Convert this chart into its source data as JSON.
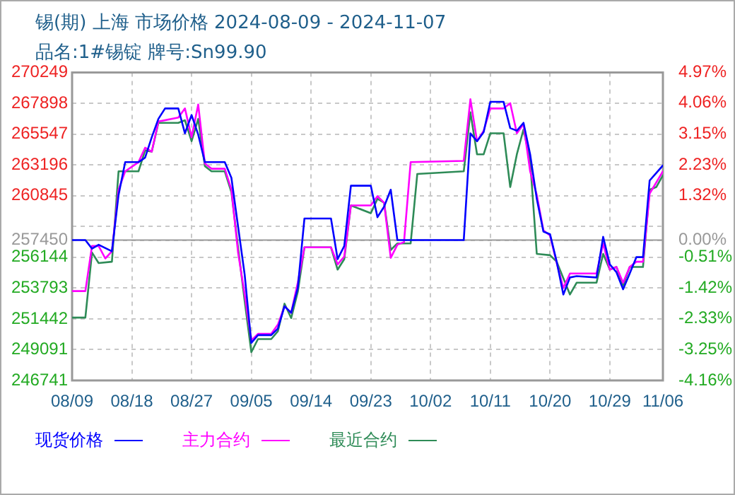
{
  "chart_data": {
    "type": "line",
    "title": "锡(期) 上海 市场价格 2024-08-09 - 2024-11-07",
    "subtitle": "品名:1#锡锭 牌号:Sn99.90",
    "series": [
      {
        "name": "现货价格",
        "color": "#0000ff",
        "x": [
          "2024-08-09",
          "2024-08-11",
          "2024-08-12",
          "2024-08-13",
          "2024-08-15",
          "2024-08-16",
          "2024-08-17",
          "2024-08-19",
          "2024-08-20",
          "2024-08-21",
          "2024-08-22",
          "2024-08-23",
          "2024-08-25",
          "2024-08-26",
          "2024-08-27",
          "2024-08-28",
          "2024-08-29",
          "2024-09-01",
          "2024-09-02",
          "2024-09-03",
          "2024-09-04",
          "2024-09-05",
          "2024-09-06",
          "2024-09-08",
          "2024-09-09",
          "2024-09-10",
          "2024-09-11",
          "2024-09-12",
          "2024-09-13",
          "2024-09-17",
          "2024-09-18",
          "2024-09-19",
          "2024-09-20",
          "2024-09-23",
          "2024-09-24",
          "2024-09-25",
          "2024-09-26",
          "2024-09-27",
          "2024-10-07",
          "2024-10-08",
          "2024-10-09",
          "2024-10-10",
          "2024-10-11",
          "2024-10-13",
          "2024-10-14",
          "2024-10-15",
          "2024-10-16",
          "2024-10-17",
          "2024-10-18",
          "2024-10-19",
          "2024-10-20",
          "2024-10-21",
          "2024-10-22",
          "2024-10-23",
          "2024-10-24",
          "2024-10-27",
          "2024-10-28",
          "2024-10-29",
          "2024-10-30",
          "2024-10-31",
          "2024-11-01",
          "2024-11-02",
          "2024-11-03",
          "2024-11-04",
          "2024-11-06"
        ],
        "values": [
          257450,
          257450,
          256800,
          257100,
          256600,
          260900,
          263400,
          263400,
          263750,
          265300,
          266700,
          267500,
          267500,
          265600,
          267000,
          265500,
          263400,
          263400,
          262200,
          258500,
          254800,
          249600,
          250200,
          250200,
          250700,
          252400,
          251900,
          253800,
          259100,
          259100,
          256000,
          257000,
          261600,
          261600,
          259200,
          260000,
          261300,
          257450,
          257450,
          265600,
          265000,
          265700,
          268000,
          268000,
          266000,
          265800,
          266400,
          264000,
          260600,
          258100,
          257900,
          255800,
          253300,
          254600,
          254700,
          254600,
          257700,
          255600,
          255000,
          253700,
          254900,
          256150,
          256150,
          262000,
          263150
        ]
      },
      {
        "name": "主力合约",
        "color": "#ff00ff",
        "x": [
          "2024-08-09",
          "2024-08-11",
          "2024-08-12",
          "2024-08-13",
          "2024-08-14",
          "2024-08-15",
          "2024-08-16",
          "2024-08-17",
          "2024-08-19",
          "2024-08-20",
          "2024-08-21",
          "2024-08-22",
          "2024-08-25",
          "2024-08-26",
          "2024-08-27",
          "2024-08-28",
          "2024-08-29",
          "2024-08-30",
          "2024-09-01",
          "2024-09-02",
          "2024-09-03",
          "2024-09-04",
          "2024-09-05",
          "2024-09-06",
          "2024-09-08",
          "2024-09-09",
          "2024-09-10",
          "2024-09-11",
          "2024-09-12",
          "2024-09-13",
          "2024-09-17",
          "2024-09-18",
          "2024-09-19",
          "2024-09-20",
          "2024-09-23",
          "2024-09-24",
          "2024-09-25",
          "2024-09-26",
          "2024-09-27",
          "2024-09-28",
          "2024-09-29",
          "2024-10-07",
          "2024-10-08",
          "2024-10-09",
          "2024-10-10",
          "2024-10-11",
          "2024-10-13",
          "2024-10-14",
          "2024-10-15",
          "2024-10-16",
          "2024-10-17",
          "2024-10-18",
          "2024-10-19",
          "2024-10-20",
          "2024-10-21",
          "2024-10-22",
          "2024-10-23",
          "2024-10-24",
          "2024-10-27",
          "2024-10-28",
          "2024-10-29",
          "2024-10-30",
          "2024-10-31",
          "2024-11-01",
          "2024-11-02",
          "2024-11-03",
          "2024-11-04",
          "2024-11-06"
        ],
        "values": [
          253560,
          253560,
          257000,
          257000,
          256050,
          256600,
          261300,
          262700,
          263400,
          264500,
          264200,
          266500,
          266800,
          267500,
          265300,
          267800,
          263300,
          262900,
          262900,
          261300,
          256500,
          253300,
          249800,
          250300,
          250300,
          251000,
          252400,
          251900,
          254200,
          256900,
          256900,
          255600,
          256200,
          260100,
          260100,
          260800,
          260300,
          256100,
          257100,
          257300,
          263400,
          263500,
          268200,
          265000,
          265800,
          267500,
          267500,
          267900,
          265600,
          266300,
          262700,
          260900,
          258200,
          257800,
          255700,
          253800,
          254900,
          254900,
          254900,
          257200,
          255200,
          255400,
          254200,
          255400,
          255800,
          255800,
          261000,
          262700
        ]
      },
      {
        "name": "最近合约",
        "color": "#2e8b57",
        "x": [
          "2024-08-09",
          "2024-08-11",
          "2024-08-12",
          "2024-08-13",
          "2024-08-15",
          "2024-08-16",
          "2024-08-19",
          "2024-08-20",
          "2024-08-21",
          "2024-08-22",
          "2024-08-25",
          "2024-08-26",
          "2024-08-27",
          "2024-08-28",
          "2024-08-29",
          "2024-08-30",
          "2024-09-01",
          "2024-09-02",
          "2024-09-03",
          "2024-09-04",
          "2024-09-05",
          "2024-09-06",
          "2024-09-08",
          "2024-09-09",
          "2024-09-10",
          "2024-09-11",
          "2024-09-12",
          "2024-09-13",
          "2024-09-17",
          "2024-09-18",
          "2024-09-19",
          "2024-09-20",
          "2024-09-23",
          "2024-09-24",
          "2024-09-25",
          "2024-09-26",
          "2024-09-27",
          "2024-09-29",
          "2024-09-30",
          "2024-10-07",
          "2024-10-08",
          "2024-10-09",
          "2024-10-10",
          "2024-10-11",
          "2024-10-13",
          "2024-10-14",
          "2024-10-15",
          "2024-10-16",
          "2024-10-17",
          "2024-10-18",
          "2024-10-20",
          "2024-10-21",
          "2024-10-23",
          "2024-10-24",
          "2024-10-27",
          "2024-10-28",
          "2024-10-29",
          "2024-10-30",
          "2024-10-31",
          "2024-11-01",
          "2024-11-03",
          "2024-11-04",
          "2024-11-05",
          "2024-11-06"
        ],
        "values": [
          251540,
          251540,
          256500,
          255700,
          255800,
          262700,
          262700,
          264300,
          264200,
          266400,
          266400,
          266600,
          265000,
          266700,
          263100,
          262700,
          262700,
          261100,
          256900,
          252800,
          248900,
          249900,
          249900,
          250500,
          252600,
          251500,
          253500,
          256900,
          256900,
          255200,
          256000,
          260100,
          259500,
          260600,
          260300,
          256700,
          257200,
          257200,
          262500,
          262700,
          267200,
          264000,
          264000,
          265600,
          265600,
          261500,
          264000,
          265900,
          263500,
          256400,
          256300,
          255800,
          253300,
          254200,
          254200,
          256400,
          255200,
          255400,
          254000,
          255400,
          255400,
          261300,
          261500,
          262400
        ]
      }
    ],
    "xlim": [
      "2024-08-09",
      "2024-11-06"
    ],
    "xticks": [
      {
        "value": "2024-08-09",
        "label": "08/09"
      },
      {
        "value": "2024-08-18",
        "label": "08/18"
      },
      {
        "value": "2024-08-27",
        "label": "08/27"
      },
      {
        "value": "2024-09-05",
        "label": "09/05"
      },
      {
        "value": "2024-09-14",
        "label": "09/14"
      },
      {
        "value": "2024-09-23",
        "label": "09/23"
      },
      {
        "value": "2024-10-02",
        "label": "10/02"
      },
      {
        "value": "2024-10-11",
        "label": "10/11"
      },
      {
        "value": "2024-10-20",
        "label": "10/20"
      },
      {
        "value": "2024-10-29",
        "label": "10/29"
      },
      {
        "value": "2024-11-06",
        "label": "11/06"
      }
    ],
    "ylim": [
      246741,
      270249
    ],
    "yticks": [
      246741,
      249091,
      251442,
      253793,
      256144,
      257450,
      {
        "value": 258494,
        "label": null
      },
      260845,
      263196,
      265547,
      267898,
      270249
    ],
    "y2lim": [
      -4.16,
      4.97
    ],
    "y2ticks": [
      {
        "value": -4.16,
        "label": "-4.16%"
      },
      {
        "value": -3.25,
        "label": "-3.25%"
      },
      {
        "value": -2.33,
        "label": "-2.33%"
      },
      {
        "value": -1.42,
        "label": "-1.42%"
      },
      {
        "value": -0.51,
        "label": "-0.51%"
      },
      {
        "value": 0,
        "label": "0.00%"
      },
      {
        "value": 1.32,
        "label": "1.32%"
      },
      {
        "value": 2.23,
        "label": "2.23%"
      },
      {
        "value": 3.15,
        "label": "3.15%"
      },
      {
        "value": 4.06,
        "label": "4.06%"
      },
      {
        "value": 4.97,
        "label": "4.97%"
      }
    ],
    "ref_lines": [
      {
        "axis": "y",
        "value": 257450,
        "color": "#999999"
      }
    ],
    "grid": true,
    "legend": "bottom"
  }
}
